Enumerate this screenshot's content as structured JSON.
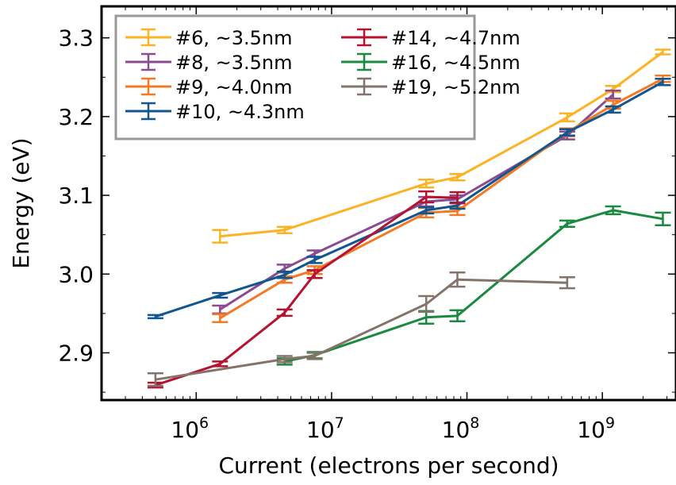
{
  "chart_data": {
    "type": "line",
    "title": "",
    "xlabel": "Current (electrons per second)",
    "ylabel": "Energy (eV)",
    "xscale": "log",
    "xlim": [
      200000,
      3500000000
    ],
    "ylim": [
      2.84,
      3.34
    ],
    "x_ticks": [
      {
        "value": 1000000,
        "base": "10",
        "exp": "6"
      },
      {
        "value": 10000000,
        "base": "10",
        "exp": "7"
      },
      {
        "value": 100000000,
        "base": "10",
        "exp": "8"
      },
      {
        "value": 1000000000,
        "base": "10",
        "exp": "9"
      }
    ],
    "y_ticks": [
      {
        "value": 2.9,
        "label": "2.9"
      },
      {
        "value": 3.0,
        "label": "3.0"
      },
      {
        "value": 3.1,
        "label": "3.1"
      },
      {
        "value": 3.2,
        "label": "3.2"
      },
      {
        "value": 3.3,
        "label": "3.3"
      }
    ],
    "grid": false,
    "legend_position": "top-left",
    "series": [
      {
        "name": "#6, ~3.5nm",
        "color": "#fbb324",
        "x": [
          1500000,
          4500000,
          50000000,
          85000000,
          550000000,
          1200000000,
          2800000000
        ],
        "y": [
          3.048,
          3.056,
          3.115,
          3.123,
          3.199,
          3.235,
          3.282
        ],
        "err": [
          0.008,
          0.004,
          0.005,
          0.004,
          0.005,
          0.004,
          0.003
        ]
      },
      {
        "name": "#8, ~3.5nm",
        "color": "#8a4b8f",
        "x": [
          1500000,
          4500000,
          7500000,
          50000000,
          85000000,
          550000000,
          1200000000
        ],
        "y": [
          2.955,
          3.007,
          3.026,
          3.092,
          3.095,
          3.176,
          3.228
        ],
        "err": [
          0.005,
          0.005,
          0.004,
          0.006,
          0.005,
          0.005,
          0.005
        ]
      },
      {
        "name": "#9, ~4.0nm",
        "color": "#f27a25",
        "x": [
          1500000,
          4500000,
          7500000,
          50000000,
          85000000,
          550000000,
          1200000000,
          2800000000
        ],
        "y": [
          2.944,
          2.993,
          3.005,
          3.078,
          3.08,
          3.18,
          3.215,
          3.248
        ],
        "err": [
          0.005,
          0.004,
          0.005,
          0.006,
          0.005,
          0.005,
          0.005,
          0.004
        ]
      },
      {
        "name": "#10, ~4.3nm",
        "color": "#125690",
        "x": [
          500000,
          1500000,
          4500000,
          7500000,
          50000000,
          85000000,
          550000000,
          1200000000,
          2800000000
        ],
        "y": [
          2.946,
          2.973,
          2.999,
          3.018,
          3.081,
          3.087,
          3.18,
          3.209,
          3.244
        ],
        "err": [
          0.002,
          0.003,
          0.004,
          0.004,
          0.004,
          0.004,
          0.004,
          0.004,
          0.004
        ]
      },
      {
        "name": "#14, ~4.7nm",
        "color": "#b5132f",
        "x": [
          500000,
          1500000,
          4500000,
          7500000,
          50000000,
          85000000
        ],
        "y": [
          2.859,
          2.886,
          2.951,
          3.0,
          3.098,
          3.097
        ],
        "err": [
          0.003,
          0.003,
          0.004,
          0.005,
          0.007,
          0.007
        ]
      },
      {
        "name": "#16, ~4.5nm",
        "color": "#198a3f",
        "x": [
          4500000,
          7500000,
          50000000,
          85000000,
          550000000,
          1200000000,
          2800000000
        ],
        "y": [
          2.889,
          2.897,
          2.945,
          2.947,
          3.064,
          3.081,
          3.07
        ],
        "err": [
          0.004,
          0.004,
          0.008,
          0.007,
          0.004,
          0.005,
          0.008
        ]
      },
      {
        "name": "#19, ~5.2nm",
        "color": "#85736b",
        "x": [
          500000,
          4500000,
          7500000,
          50000000,
          85000000,
          550000000
        ],
        "y": [
          2.866,
          2.892,
          2.896,
          2.962,
          2.993,
          2.989
        ],
        "err": [
          0.008,
          0.004,
          0.004,
          0.01,
          0.009,
          0.007
        ]
      }
    ]
  }
}
